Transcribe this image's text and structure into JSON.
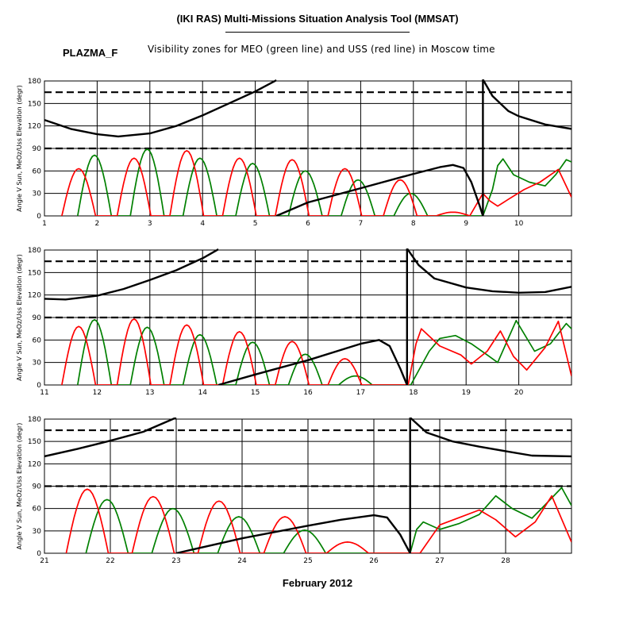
{
  "header": {
    "title": "(IKI RAS) Multi-Missions Situation Analysis Tool (MMSAT)",
    "mission": "PLAZMA_F",
    "subtitle": "Visibility zones for MEO (green line) and USS (red line) in Moscow time"
  },
  "colors": {
    "sun": "#000000",
    "meo": "#008000",
    "uss": "#ff0000",
    "grid": "#000000"
  },
  "chart_data": {
    "type": "line",
    "xlabel": "February 2012",
    "ylabel": "Angle V Sun, MeOz/Uss Elevation (degr)",
    "reference_lines": [
      90,
      165
    ],
    "yticks": [
      0,
      30,
      60,
      90,
      120,
      150,
      180
    ],
    "ylim": [
      0,
      180
    ],
    "panels": [
      {
        "xlim": [
          1,
          11
        ],
        "xticks": [
          1,
          2,
          3,
          4,
          5,
          6,
          7,
          8,
          9,
          10
        ],
        "sun_segments": [
          [
            [
              1,
              128
            ],
            [
              1.5,
              116
            ],
            [
              2,
              109
            ],
            [
              2.4,
              106
            ],
            [
              3,
              110
            ],
            [
              3.5,
              120
            ],
            [
              4,
              134
            ],
            [
              4.5,
              150
            ],
            [
              5,
              166
            ],
            [
              5.4,
              181
            ]
          ],
          [
            [
              5.4,
              0
            ],
            [
              6,
              18
            ],
            [
              7,
              37
            ],
            [
              8,
              56
            ],
            [
              8.5,
              65
            ],
            [
              8.75,
              68
            ],
            [
              8.95,
              64
            ],
            [
              9.1,
              45
            ],
            [
              9.25,
              15
            ],
            [
              9.32,
              0
            ]
          ],
          [
            [
              9.32,
              0
            ],
            [
              9.32,
              182
            ]
          ],
          [
            [
              9.32,
              182
            ],
            [
              9.5,
              160
            ],
            [
              9.8,
              140
            ],
            [
              10,
              133
            ],
            [
              10.5,
              122
            ],
            [
              11,
              116
            ]
          ]
        ],
        "meo_peaks": [
          [
            1.95,
            81
          ],
          [
            2.95,
            89
          ],
          [
            3.95,
            77
          ],
          [
            4.95,
            70
          ],
          [
            5.95,
            60
          ],
          [
            6.95,
            48
          ],
          [
            7.95,
            30
          ]
        ],
        "uss_peaks": [
          [
            1.65,
            63
          ],
          [
            2.7,
            77
          ],
          [
            3.7,
            87
          ],
          [
            4.7,
            77
          ],
          [
            5.7,
            75
          ],
          [
            6.7,
            63
          ],
          [
            7.75,
            48
          ],
          [
            8.75,
            5
          ]
        ],
        "meo_tail": [
          [
            9.32,
            0
          ],
          [
            9.5,
            35
          ],
          [
            9.6,
            67
          ],
          [
            9.7,
            76
          ],
          [
            9.9,
            55
          ],
          [
            10.2,
            45
          ],
          [
            10.5,
            40
          ],
          [
            10.7,
            55
          ],
          [
            10.9,
            75
          ],
          [
            11,
            72
          ]
        ],
        "uss_tail": [
          [
            9.32,
            30
          ],
          [
            9.45,
            20
          ],
          [
            9.6,
            13
          ],
          [
            9.8,
            22
          ],
          [
            10.1,
            35
          ],
          [
            10.4,
            45
          ],
          [
            10.75,
            62
          ],
          [
            11,
            25
          ]
        ]
      },
      {
        "xlim": [
          11,
          21
        ],
        "xticks": [
          11,
          12,
          13,
          14,
          15,
          16,
          17,
          18,
          19,
          20
        ],
        "sun_segments": [
          [
            [
              11,
              115
            ],
            [
              11.4,
              114
            ],
            [
              12,
              119
            ],
            [
              12.5,
              128
            ],
            [
              13,
              140
            ],
            [
              13.5,
              153
            ],
            [
              14,
              169
            ],
            [
              14.3,
              181
            ]
          ],
          [
            [
              14.3,
              0
            ],
            [
              15,
              14
            ],
            [
              16,
              33
            ],
            [
              17,
              55
            ],
            [
              17.35,
              60
            ],
            [
              17.55,
              52
            ],
            [
              17.75,
              22
            ],
            [
              17.88,
              0
            ]
          ],
          [
            [
              17.88,
              0
            ],
            [
              17.88,
              182
            ]
          ],
          [
            [
              17.88,
              182
            ],
            [
              18.1,
              160
            ],
            [
              18.4,
              142
            ],
            [
              19,
              130
            ],
            [
              19.5,
              125
            ],
            [
              20,
              123
            ],
            [
              20.5,
              124
            ],
            [
              21,
              131
            ]
          ]
        ],
        "meo_peaks": [
          [
            11.95,
            87
          ],
          [
            12.95,
            77
          ],
          [
            13.95,
            67
          ],
          [
            14.95,
            57
          ],
          [
            15.95,
            41
          ],
          [
            16.9,
            12
          ]
        ],
        "uss_peaks": [
          [
            11.65,
            78
          ],
          [
            12.7,
            88
          ],
          [
            13.7,
            80
          ],
          [
            14.7,
            71
          ],
          [
            15.7,
            58
          ],
          [
            16.7,
            35
          ]
        ],
        "meo_tail": [
          [
            17.95,
            0
          ],
          [
            18.3,
            45
          ],
          [
            18.5,
            62
          ],
          [
            18.8,
            66
          ],
          [
            19.1,
            55
          ],
          [
            19.4,
            40
          ],
          [
            19.6,
            30
          ],
          [
            19.95,
            86
          ],
          [
            20.3,
            45
          ],
          [
            20.6,
            55
          ],
          [
            20.9,
            82
          ],
          [
            21,
            75
          ]
        ],
        "uss_tail": [
          [
            17.9,
            0
          ],
          [
            18.05,
            55
          ],
          [
            18.15,
            75
          ],
          [
            18.5,
            52
          ],
          [
            18.9,
            40
          ],
          [
            19.1,
            28
          ],
          [
            19.4,
            45
          ],
          [
            19.65,
            72
          ],
          [
            19.9,
            38
          ],
          [
            20.15,
            20
          ],
          [
            20.5,
            50
          ],
          [
            20.75,
            85
          ],
          [
            21,
            12
          ]
        ]
      },
      {
        "xlim": [
          21,
          29
        ],
        "xticks": [
          21,
          22,
          23,
          24,
          25,
          26,
          27,
          28
        ],
        "sun_segments": [
          [
            [
              21,
              130
            ],
            [
              21.5,
              140
            ],
            [
              22,
              151
            ],
            [
              22.5,
              163
            ],
            [
              23,
              182
            ]
          ],
          [
            [
              23,
              0
            ],
            [
              24,
              20
            ],
            [
              25,
              37
            ],
            [
              25.5,
              45
            ],
            [
              26,
              51
            ],
            [
              26.2,
              48
            ],
            [
              26.4,
              25
            ],
            [
              26.55,
              0
            ]
          ],
          [
            [
              26.55,
              0
            ],
            [
              26.55,
              182
            ]
          ],
          [
            [
              26.55,
              182
            ],
            [
              26.8,
              162
            ],
            [
              27.2,
              150
            ],
            [
              27.6,
              143
            ],
            [
              28,
              137
            ],
            [
              28.4,
              131
            ],
            [
              29,
              130
            ]
          ]
        ],
        "meo_peaks": [
          [
            21.95,
            72
          ],
          [
            22.95,
            60
          ],
          [
            23.95,
            49
          ],
          [
            24.95,
            31
          ]
        ],
        "uss_peaks": [
          [
            21.65,
            86
          ],
          [
            22.65,
            76
          ],
          [
            23.65,
            70
          ],
          [
            24.65,
            49
          ],
          [
            25.6,
            15
          ]
        ],
        "meo_tail": [
          [
            26.55,
            0
          ],
          [
            26.65,
            32
          ],
          [
            26.75,
            42
          ],
          [
            27,
            32
          ],
          [
            27.3,
            40
          ],
          [
            27.6,
            52
          ],
          [
            27.85,
            77
          ],
          [
            28.1,
            60
          ],
          [
            28.4,
            47
          ],
          [
            28.6,
            65
          ],
          [
            28.85,
            88
          ],
          [
            29,
            64
          ]
        ],
        "uss_tail": [
          [
            26.7,
            0
          ],
          [
            27.0,
            38
          ],
          [
            27.3,
            48
          ],
          [
            27.6,
            58
          ],
          [
            27.85,
            45
          ],
          [
            28.15,
            22
          ],
          [
            28.45,
            42
          ],
          [
            28.7,
            77
          ],
          [
            29,
            15
          ]
        ]
      }
    ]
  }
}
